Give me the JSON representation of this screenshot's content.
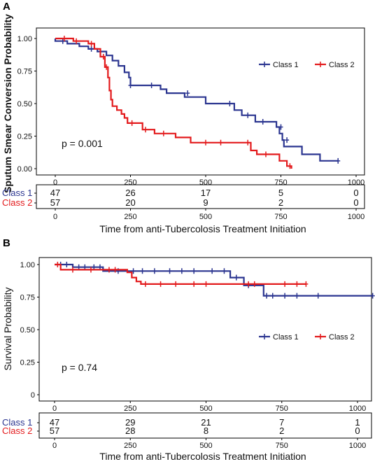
{
  "colors": {
    "class1": "#2b3590",
    "class2": "#e31a1c"
  },
  "chart_data": [
    {
      "panel_letter": "A",
      "type": "line",
      "ylabel": "Sputum Smear Conversion Probability",
      "xlabel": "Time from anti-Tubercolosis Treatment Initiation",
      "xlim": [
        0,
        1000
      ],
      "ylim": [
        0,
        1
      ],
      "x_ticks": [
        0,
        250,
        500,
        750,
        1000
      ],
      "x_tick_labels": [
        "0",
        "250",
        "500",
        "750",
        "1000"
      ],
      "y_ticks": [
        0,
        0.25,
        0.5,
        0.75,
        1
      ],
      "y_tick_labels": [
        "0.00",
        "0.25",
        "0.50",
        "0.75",
        "1.00"
      ],
      "y_font": "bold",
      "legend": {
        "position": "top-right",
        "entries": [
          "Class 1",
          "Class 2"
        ]
      },
      "annotation": "p = 0.001",
      "series": [
        {
          "name": "Class 1",
          "steps": [
            [
              0,
              1
            ],
            [
              0,
              0.98
            ],
            [
              40,
              0.98
            ],
            [
              40,
              0.96
            ],
            [
              80,
              0.96
            ],
            [
              80,
              0.94
            ],
            [
              110,
              0.94
            ],
            [
              110,
              0.92
            ],
            [
              140,
              0.92
            ],
            [
              140,
              0.9
            ],
            [
              170,
              0.9
            ],
            [
              170,
              0.87
            ],
            [
              190,
              0.87
            ],
            [
              190,
              0.83
            ],
            [
              210,
              0.83
            ],
            [
              210,
              0.79
            ],
            [
              230,
              0.79
            ],
            [
              230,
              0.74
            ],
            [
              245,
              0.74
            ],
            [
              245,
              0.7
            ],
            [
              250,
              0.7
            ],
            [
              250,
              0.64
            ],
            [
              350,
              0.64
            ],
            [
              350,
              0.61
            ],
            [
              370,
              0.61
            ],
            [
              370,
              0.58
            ],
            [
              430,
              0.58
            ],
            [
              430,
              0.55
            ],
            [
              500,
              0.55
            ],
            [
              500,
              0.5
            ],
            [
              595,
              0.5
            ],
            [
              595,
              0.45
            ],
            [
              620,
              0.45
            ],
            [
              620,
              0.41
            ],
            [
              665,
              0.41
            ],
            [
              665,
              0.36
            ],
            [
              735,
              0.36
            ],
            [
              735,
              0.32
            ],
            [
              745,
              0.32
            ],
            [
              745,
              0.27
            ],
            [
              755,
              0.27
            ],
            [
              755,
              0.22
            ],
            [
              760,
              0.22
            ],
            [
              760,
              0.17
            ],
            [
              820,
              0.17
            ],
            [
              820,
              0.11
            ],
            [
              880,
              0.11
            ],
            [
              880,
              0.06
            ],
            [
              940,
              0.06
            ]
          ],
          "censored": [
            [
              25,
              0.98
            ],
            [
              120,
              0.92
            ],
            [
              150,
              0.9
            ],
            [
              250,
              0.64
            ],
            [
              320,
              0.64
            ],
            [
              440,
              0.58
            ],
            [
              580,
              0.5
            ],
            [
              640,
              0.41
            ],
            [
              690,
              0.36
            ],
            [
              750,
              0.32
            ],
            [
              770,
              0.22
            ],
            [
              940,
              0.06
            ]
          ]
        },
        {
          "name": "Class 2",
          "steps": [
            [
              0,
              1
            ],
            [
              60,
              1
            ],
            [
              60,
              0.98
            ],
            [
              110,
              0.98
            ],
            [
              110,
              0.96
            ],
            [
              130,
              0.96
            ],
            [
              130,
              0.92
            ],
            [
              150,
              0.92
            ],
            [
              150,
              0.86
            ],
            [
              165,
              0.86
            ],
            [
              165,
              0.78
            ],
            [
              175,
              0.78
            ],
            [
              175,
              0.7
            ],
            [
              180,
              0.7
            ],
            [
              180,
              0.6
            ],
            [
              185,
              0.6
            ],
            [
              185,
              0.53
            ],
            [
              190,
              0.53
            ],
            [
              190,
              0.48
            ],
            [
              205,
              0.48
            ],
            [
              205,
              0.45
            ],
            [
              220,
              0.45
            ],
            [
              220,
              0.42
            ],
            [
              230,
              0.42
            ],
            [
              230,
              0.39
            ],
            [
              240,
              0.39
            ],
            [
              240,
              0.35
            ],
            [
              250,
              0.35
            ],
            [
              250,
              0.35
            ],
            [
              290,
              0.35
            ],
            [
              290,
              0.3
            ],
            [
              330,
              0.3
            ],
            [
              330,
              0.27
            ],
            [
              400,
              0.27
            ],
            [
              400,
              0.24
            ],
            [
              450,
              0.24
            ],
            [
              450,
              0.2
            ],
            [
              650,
              0.2
            ],
            [
              650,
              0.14
            ],
            [
              670,
              0.14
            ],
            [
              670,
              0.11
            ],
            [
              745,
              0.11
            ],
            [
              745,
              0.06
            ],
            [
              770,
              0.06
            ],
            [
              770,
              0.02
            ],
            [
              785,
              0.02
            ],
            [
              785,
              0
            ]
          ],
          "censored": [
            [
              30,
              1
            ],
            [
              70,
              0.98
            ],
            [
              120,
              0.96
            ],
            [
              160,
              0.86
            ],
            [
              170,
              0.78
            ],
            [
              255,
              0.35
            ],
            [
              300,
              0.3
            ],
            [
              360,
              0.27
            ],
            [
              500,
              0.2
            ],
            [
              550,
              0.2
            ],
            [
              640,
              0.2
            ],
            [
              700,
              0.11
            ],
            [
              780,
              0.02
            ]
          ]
        }
      ],
      "risk_table": {
        "rows": [
          {
            "label": "Class 1",
            "values": [
              "47",
              "26",
              "17",
              "5",
              "0"
            ]
          },
          {
            "label": "Class 2",
            "values": [
              "57",
              "20",
              "9",
              "2",
              "0"
            ]
          }
        ],
        "x": [
          0,
          250,
          500,
          750,
          1000
        ],
        "x_tick_labels": [
          "0",
          "250",
          "500",
          "750",
          "1000"
        ]
      }
    },
    {
      "panel_letter": "B",
      "type": "line",
      "ylabel": "Survival Probability",
      "xlabel": "Time from anti-Tubercolosis Treatment Initiation",
      "xlim": [
        0,
        1050
      ],
      "ylim": [
        0,
        1
      ],
      "x_ticks": [
        0,
        250,
        500,
        750,
        1000
      ],
      "x_tick_labels": [
        "0",
        "250",
        "500",
        "750",
        "1000"
      ],
      "y_ticks": [
        0,
        0.25,
        0.5,
        0.75,
        1
      ],
      "y_tick_labels": [
        "0",
        "0.25",
        "0.50",
        "0.75",
        "1.00"
      ],
      "y_font": "normal",
      "legend": {
        "position": "right",
        "entries": [
          "Class  1",
          "Class  2"
        ]
      },
      "annotation": "p = 0.74",
      "series": [
        {
          "name": "Class  1",
          "steps": [
            [
              0,
              1
            ],
            [
              60,
              1
            ],
            [
              60,
              0.98
            ],
            [
              160,
              0.98
            ],
            [
              160,
              0.95
            ],
            [
              580,
              0.95
            ],
            [
              580,
              0.9
            ],
            [
              625,
              0.9
            ],
            [
              625,
              0.84
            ],
            [
              690,
              0.84
            ],
            [
              690,
              0.76
            ],
            [
              1050,
              0.76
            ]
          ],
          "censored": [
            [
              20,
              1
            ],
            [
              40,
              1
            ],
            [
              80,
              0.98
            ],
            [
              100,
              0.98
            ],
            [
              130,
              0.98
            ],
            [
              150,
              0.98
            ],
            [
              210,
              0.95
            ],
            [
              260,
              0.95
            ],
            [
              290,
              0.95
            ],
            [
              330,
              0.95
            ],
            [
              380,
              0.95
            ],
            [
              420,
              0.95
            ],
            [
              460,
              0.95
            ],
            [
              520,
              0.95
            ],
            [
              560,
              0.95
            ],
            [
              600,
              0.9
            ],
            [
              640,
              0.84
            ],
            [
              700,
              0.76
            ],
            [
              720,
              0.76
            ],
            [
              760,
              0.76
            ],
            [
              800,
              0.76
            ],
            [
              870,
              0.76
            ],
            [
              1050,
              0.76
            ]
          ]
        },
        {
          "name": "Class  2",
          "steps": [
            [
              0,
              1
            ],
            [
              20,
              1
            ],
            [
              20,
              0.96
            ],
            [
              240,
              0.96
            ],
            [
              240,
              0.94
            ],
            [
              255,
              0.94
            ],
            [
              255,
              0.9
            ],
            [
              270,
              0.9
            ],
            [
              270,
              0.87
            ],
            [
              285,
              0.87
            ],
            [
              285,
              0.85
            ],
            [
              830,
              0.85
            ]
          ],
          "censored": [
            [
              10,
              1
            ],
            [
              60,
              0.96
            ],
            [
              120,
              0.96
            ],
            [
              180,
              0.96
            ],
            [
              200,
              0.96
            ],
            [
              300,
              0.85
            ],
            [
              350,
              0.85
            ],
            [
              400,
              0.85
            ],
            [
              460,
              0.85
            ],
            [
              500,
              0.85
            ],
            [
              640,
              0.85
            ],
            [
              660,
              0.85
            ],
            [
              760,
              0.85
            ],
            [
              800,
              0.85
            ],
            [
              830,
              0.85
            ]
          ]
        }
      ],
      "risk_table": {
        "rows": [
          {
            "label": "Class 1",
            "values": [
              "47",
              "29",
              "21",
              "7",
              "1"
            ]
          },
          {
            "label": "Class 2",
            "values": [
              "57",
              "28",
              "8",
              "2",
              "0"
            ]
          }
        ],
        "x": [
          0,
          250,
          500,
          750,
          1000
        ],
        "x_tick_labels": [
          "0",
          "250",
          "500",
          "750",
          "1000"
        ]
      }
    }
  ]
}
